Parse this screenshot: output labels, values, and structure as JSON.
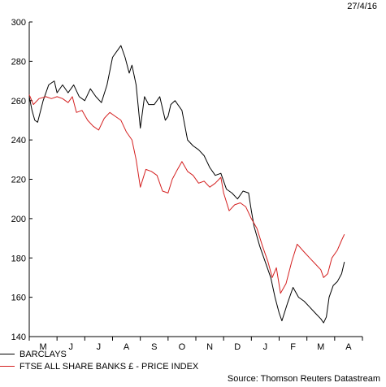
{
  "date": "27/4/16",
  "source": "Source: Thomson Reuters Datastream",
  "colors": {
    "barclays": "#000000",
    "ftse_banks": "#d42020"
  },
  "chart_data": {
    "type": "line",
    "ylim": [
      140,
      300
    ],
    "yticks": [
      140,
      160,
      180,
      200,
      220,
      240,
      260,
      280,
      300
    ],
    "months": [
      "M",
      "J",
      "J",
      "A",
      "S",
      "O",
      "N",
      "D",
      "J",
      "F",
      "M",
      "A"
    ],
    "grid": false,
    "legend_position": "bottom-left",
    "series": [
      {
        "name": "BARCLAYS",
        "color": "#000000",
        "points": [
          [
            0,
            262
          ],
          [
            0.1,
            255
          ],
          [
            0.2,
            250
          ],
          [
            0.3,
            249
          ],
          [
            0.5,
            260
          ],
          [
            0.7,
            268
          ],
          [
            0.9,
            270
          ],
          [
            1.0,
            264
          ],
          [
            1.2,
            268
          ],
          [
            1.4,
            264
          ],
          [
            1.6,
            268
          ],
          [
            1.8,
            262
          ],
          [
            2.0,
            260
          ],
          [
            2.2,
            266
          ],
          [
            2.4,
            262
          ],
          [
            2.6,
            259
          ],
          [
            2.8,
            268
          ],
          [
            3.0,
            282
          ],
          [
            3.2,
            286
          ],
          [
            3.3,
            288
          ],
          [
            3.45,
            282
          ],
          [
            3.6,
            274
          ],
          [
            3.7,
            278
          ],
          [
            3.85,
            268
          ],
          [
            4.0,
            246
          ],
          [
            4.15,
            262
          ],
          [
            4.3,
            258
          ],
          [
            4.5,
            258
          ],
          [
            4.7,
            262
          ],
          [
            4.9,
            250
          ],
          [
            5.0,
            252
          ],
          [
            5.1,
            258
          ],
          [
            5.25,
            260
          ],
          [
            5.5,
            255
          ],
          [
            5.7,
            240
          ],
          [
            5.9,
            237
          ],
          [
            6.1,
            235
          ],
          [
            6.3,
            232
          ],
          [
            6.5,
            226
          ],
          [
            6.7,
            222
          ],
          [
            6.9,
            223
          ],
          [
            7.1,
            215
          ],
          [
            7.3,
            213
          ],
          [
            7.5,
            210
          ],
          [
            7.7,
            214
          ],
          [
            7.9,
            213
          ],
          [
            8.0,
            204
          ],
          [
            8.1,
            196
          ],
          [
            8.3,
            186
          ],
          [
            8.5,
            178
          ],
          [
            8.7,
            170
          ],
          [
            8.85,
            160
          ],
          [
            9.0,
            152
          ],
          [
            9.1,
            148
          ],
          [
            9.3,
            157
          ],
          [
            9.5,
            165
          ],
          [
            9.7,
            160
          ],
          [
            9.9,
            158
          ],
          [
            10.1,
            155
          ],
          [
            10.3,
            152
          ],
          [
            10.5,
            149
          ],
          [
            10.6,
            147
          ],
          [
            10.7,
            150
          ],
          [
            10.8,
            160
          ],
          [
            10.95,
            166
          ],
          [
            11.1,
            168
          ],
          [
            11.25,
            172
          ],
          [
            11.35,
            178
          ]
        ]
      },
      {
        "name": "FTSE ALL SHARE BANKS £ - PRICE INDEX",
        "color": "#d42020",
        "points": [
          [
            0,
            263
          ],
          [
            0.15,
            258
          ],
          [
            0.35,
            261
          ],
          [
            0.6,
            262
          ],
          [
            0.8,
            261
          ],
          [
            1.0,
            262
          ],
          [
            1.2,
            261
          ],
          [
            1.4,
            259
          ],
          [
            1.55,
            262
          ],
          [
            1.7,
            254
          ],
          [
            1.9,
            255
          ],
          [
            2.1,
            250
          ],
          [
            2.3,
            247
          ],
          [
            2.5,
            245
          ],
          [
            2.7,
            251
          ],
          [
            2.9,
            254
          ],
          [
            3.1,
            252
          ],
          [
            3.3,
            250
          ],
          [
            3.5,
            244
          ],
          [
            3.7,
            240
          ],
          [
            3.85,
            230
          ],
          [
            4.0,
            216
          ],
          [
            4.2,
            225
          ],
          [
            4.4,
            224
          ],
          [
            4.6,
            222
          ],
          [
            4.8,
            214
          ],
          [
            5.0,
            213
          ],
          [
            5.15,
            220
          ],
          [
            5.3,
            224
          ],
          [
            5.5,
            229
          ],
          [
            5.7,
            224
          ],
          [
            5.9,
            222
          ],
          [
            6.1,
            218
          ],
          [
            6.3,
            219
          ],
          [
            6.5,
            216
          ],
          [
            6.7,
            218
          ],
          [
            6.9,
            221
          ],
          [
            7.0,
            213
          ],
          [
            7.2,
            204
          ],
          [
            7.4,
            207
          ],
          [
            7.6,
            208
          ],
          [
            7.8,
            206
          ],
          [
            8.0,
            200
          ],
          [
            8.2,
            195
          ],
          [
            8.4,
            186
          ],
          [
            8.6,
            178
          ],
          [
            8.75,
            170
          ],
          [
            8.9,
            175
          ],
          [
            9.05,
            162
          ],
          [
            9.25,
            167
          ],
          [
            9.45,
            178
          ],
          [
            9.65,
            187
          ],
          [
            9.9,
            183
          ],
          [
            10.1,
            180
          ],
          [
            10.3,
            177
          ],
          [
            10.5,
            174
          ],
          [
            10.6,
            170
          ],
          [
            10.75,
            172
          ],
          [
            10.9,
            180
          ],
          [
            11.1,
            184
          ],
          [
            11.25,
            189
          ],
          [
            11.35,
            192
          ]
        ]
      }
    ]
  }
}
